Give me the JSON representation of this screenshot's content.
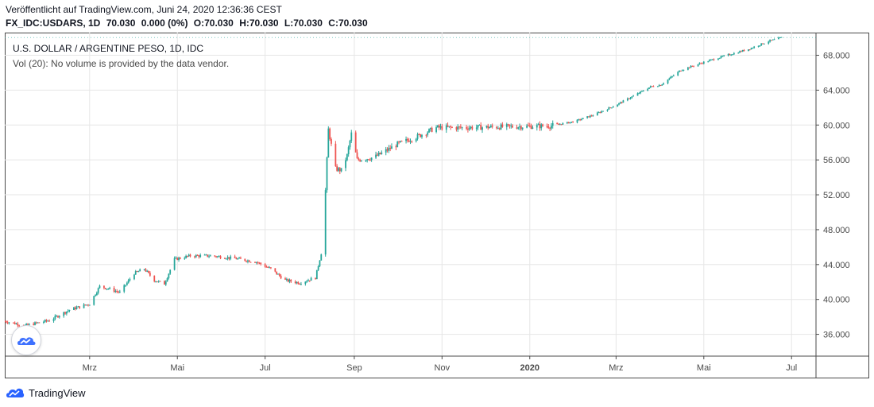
{
  "header": {
    "published": "Veröffentlicht auf TradingView.com, Juni 24, 2020 12:36:36 CEST",
    "symbol": "FX_IDC:USDARS, 1D",
    "last": "70.030",
    "change": "0.000 (0%)",
    "open": "O:70.030",
    "high": "H:70.030",
    "low": "L:70.030",
    "close": "C:70.030"
  },
  "legend": {
    "title": "U.S. DOLLAR / ARGENTINE PESO, 1D, IDC",
    "volume": "Vol (20): No volume is provided by the data vendor."
  },
  "footer": {
    "brand": "TradingView",
    "logo_icon": "tradingview-cloud-icon"
  },
  "colors": {
    "up": "#26a69a",
    "down": "#ef5350",
    "grid": "#e6e6e6",
    "axis_text": "#4a4a4a",
    "brand": "#2962ff"
  },
  "chart_data": {
    "type": "candlestick",
    "title": "U.S. DOLLAR / ARGENTINE PESO, 1D, IDC",
    "x_axis_labels": [
      "Mrz",
      "Mai",
      "Jul",
      "Sep",
      "Nov",
      "2020",
      "Mrz",
      "Mai",
      "Jul"
    ],
    "x_axis_dates": [
      "2019-03-01",
      "2019-05-01",
      "2019-07-01",
      "2019-09-01",
      "2019-11-01",
      "2020-01-01",
      "2020-03-01",
      "2020-05-01",
      "2020-07-01"
    ],
    "y_ticks": [
      "36.000",
      "40.000",
      "44.000",
      "48.000",
      "52.000",
      "56.000",
      "60.000",
      "64.000",
      "68.000"
    ],
    "y_tick_values": [
      36,
      40,
      44,
      48,
      52,
      56,
      60,
      64,
      68
    ],
    "ylim": [
      33.5,
      70.6
    ],
    "xlim": [
      "2019-01-01",
      "2020-07-18"
    ],
    "grid": true,
    "last_value": 70.03,
    "series": [
      {
        "kind": "close_path",
        "points": [
          [
            "2019-01-01",
            37.5
          ],
          [
            "2019-01-15",
            37.0
          ],
          [
            "2019-02-01",
            37.6
          ],
          [
            "2019-02-15",
            38.8
          ],
          [
            "2019-03-01",
            39.5
          ],
          [
            "2019-03-08",
            41.5
          ],
          [
            "2019-03-15",
            41.2
          ],
          [
            "2019-03-22",
            40.8
          ],
          [
            "2019-04-01",
            43.0
          ],
          [
            "2019-04-08",
            43.5
          ],
          [
            "2019-04-15",
            42.2
          ],
          [
            "2019-04-22",
            41.8
          ],
          [
            "2019-04-29",
            44.6
          ],
          [
            "2019-05-10",
            45.0
          ],
          [
            "2019-05-25",
            45.0
          ],
          [
            "2019-06-10",
            44.7
          ],
          [
            "2019-06-25",
            44.3
          ],
          [
            "2019-07-05",
            43.5
          ],
          [
            "2019-07-15",
            42.2
          ],
          [
            "2019-07-25",
            41.9
          ],
          [
            "2019-08-05",
            42.5
          ],
          [
            "2019-08-09",
            45.3
          ],
          [
            "2019-08-12",
            52.5
          ],
          [
            "2019-08-14",
            59.5
          ],
          [
            "2019-08-19",
            55.0
          ],
          [
            "2019-08-23",
            54.8
          ],
          [
            "2019-08-27",
            56.5
          ],
          [
            "2019-08-30",
            59.0
          ],
          [
            "2019-09-03",
            56.0
          ],
          [
            "2019-09-15",
            56.3
          ],
          [
            "2019-10-01",
            57.8
          ],
          [
            "2019-10-15",
            58.7
          ],
          [
            "2019-10-28",
            59.7
          ],
          [
            "2019-11-15",
            59.7
          ],
          [
            "2019-12-15",
            59.8
          ],
          [
            "2020-01-15",
            59.9
          ],
          [
            "2020-02-01",
            60.4
          ],
          [
            "2020-02-15",
            61.2
          ],
          [
            "2020-03-01",
            62.3
          ],
          [
            "2020-03-15",
            63.5
          ],
          [
            "2020-03-25",
            64.4
          ],
          [
            "2020-04-01",
            64.6
          ],
          [
            "2020-04-15",
            66.3
          ],
          [
            "2020-05-01",
            67.2
          ],
          [
            "2020-05-15",
            67.9
          ],
          [
            "2020-06-01",
            68.7
          ],
          [
            "2020-06-15",
            69.6
          ],
          [
            "2020-06-24",
            70.03
          ]
        ]
      }
    ]
  }
}
